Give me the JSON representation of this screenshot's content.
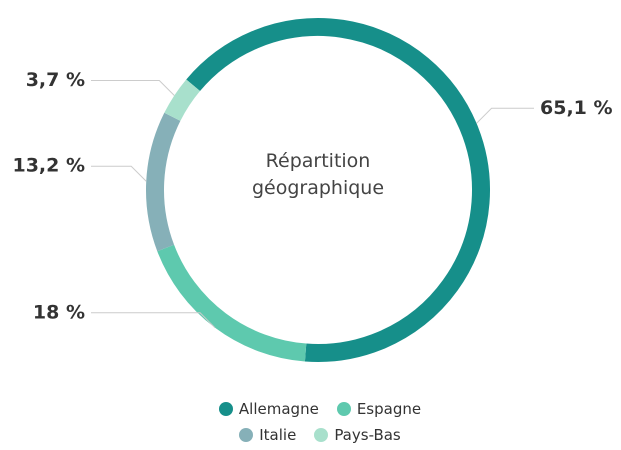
{
  "chart_data": {
    "type": "donut",
    "title": "Répartition géographique",
    "categories": [
      "Allemagne",
      "Espagne",
      "Italie",
      "Pays-Bas"
    ],
    "values": [
      65.1,
      18,
      13.2,
      3.7
    ],
    "value_labels": [
      "65,1 %",
      "18 %",
      "13,2 %",
      "3,7 %"
    ],
    "colors": [
      "#168f8a",
      "#5ec9ae",
      "#86b0b8",
      "#a8e0cc"
    ],
    "legend": "bottom"
  }
}
